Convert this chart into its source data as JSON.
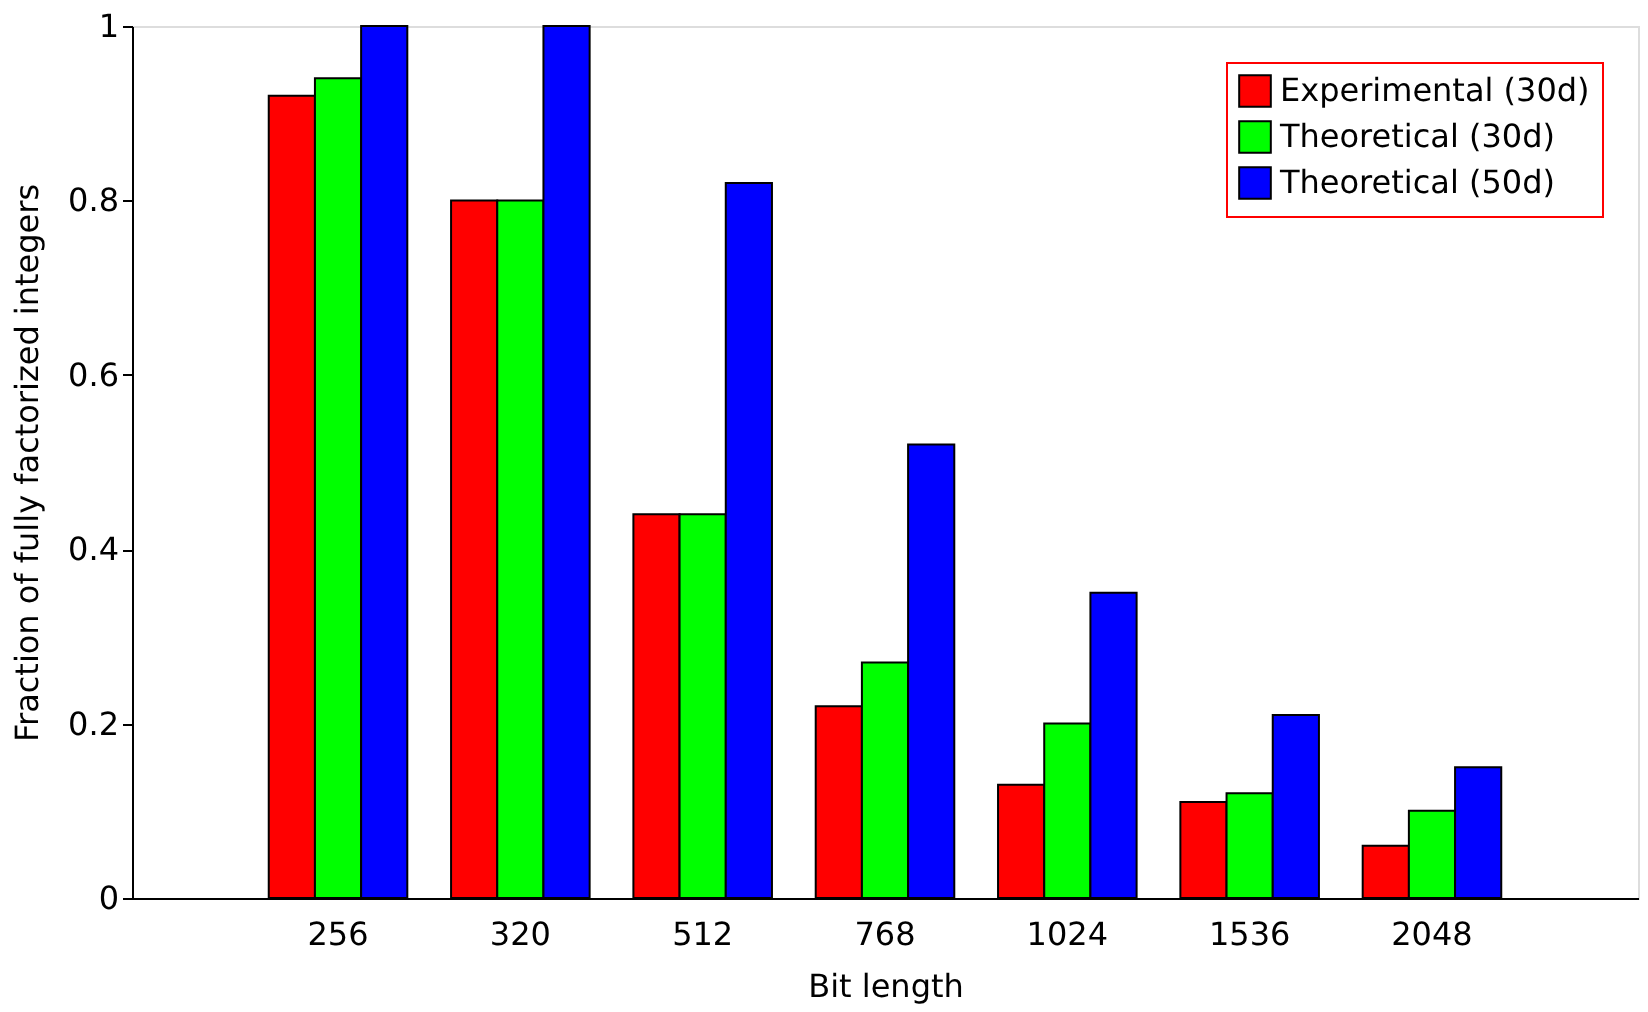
{
  "chart_data": {
    "type": "bar",
    "xlabel": "Bit length",
    "ylabel": "Fraction of fully factorized integers",
    "categories": [
      "256",
      "320",
      "512",
      "768",
      "1024",
      "1536",
      "2048"
    ],
    "series": [
      {
        "name": "Experimental (30d)",
        "color": "#ff0000",
        "values": [
          0.92,
          0.8,
          0.44,
          0.22,
          0.13,
          0.11,
          0.06
        ]
      },
      {
        "name": "Theoretical (30d)",
        "color": "#00ff00",
        "values": [
          0.94,
          0.8,
          0.44,
          0.27,
          0.2,
          0.12,
          0.1
        ]
      },
      {
        "name": "Theoretical (50d)",
        "color": "#0000ff",
        "values": [
          1.0,
          1.0,
          0.82,
          0.52,
          0.35,
          0.21,
          0.15
        ]
      }
    ],
    "ylim": [
      0,
      1
    ],
    "yticks": [
      0,
      0.2,
      0.4,
      0.6,
      0.8,
      1
    ],
    "grid": false,
    "legend": "top right"
  }
}
